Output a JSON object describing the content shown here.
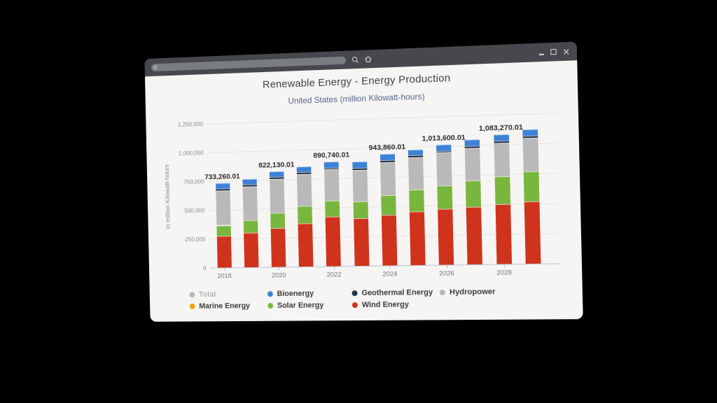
{
  "browser": {
    "address_bar": {
      "value": "",
      "placeholder": ""
    },
    "toolbar_icons": [
      "search-icon",
      "home-icon"
    ],
    "window_controls": [
      "minimize",
      "maximize",
      "close"
    ],
    "colors": {
      "chrome_bg": "#46484d",
      "pill_bg": "#797c80",
      "body_bg": "#f6f5f3"
    }
  },
  "chart": {
    "title": "Renewable Energy - Energy Production",
    "subtitle": "United States (million Kilowatt-hours)",
    "y_axis_title": "in million Kilowatt-hours"
  },
  "chart_data": {
    "type": "bar",
    "stacked": true,
    "title": "Renewable Energy - Energy Production",
    "subtitle": "United States (million Kilowatt-hours)",
    "ylabel": "in million Kilowatt-hours",
    "ylim": [
      0,
      1250000
    ],
    "grid": "horizontal",
    "legend_position": "bottom",
    "categories": [
      "2018",
      "2019",
      "2020",
      "2021",
      "2022",
      "2023",
      "2024",
      "2025",
      "2026",
      "2027",
      "2028",
      "2029"
    ],
    "series": [
      {
        "name": "Wind Energy",
        "color": "#d0331c",
        "values": [
          273000,
          300000,
          335000,
          370000,
          425000,
          405000,
          430000,
          450000,
          468000,
          485000,
          502000,
          520000
        ]
      },
      {
        "name": "Solar Energy",
        "color": "#79b63e",
        "values": [
          93000,
          105000,
          130000,
          145000,
          133000,
          140000,
          166000,
          185000,
          200000,
          215000,
          230000,
          245000
        ]
      },
      {
        "name": "Marine Energy",
        "color": "#f0a30a",
        "values": [
          0.01,
          0.01,
          0.01,
          0.01,
          0.01,
          0.01,
          0.01,
          0.01,
          0.01,
          0.01,
          0.01,
          0.01
        ]
      },
      {
        "name": "Hydropower",
        "color": "#b9b9b9",
        "values": [
          302260,
          293000,
          292130,
          275000,
          266740,
          273000,
          279860,
          274000,
          275600,
          277000,
          279270,
          282000
        ]
      },
      {
        "name": "Geothermal Energy",
        "color": "#1d3349",
        "values": [
          17000,
          17000,
          17000,
          17000,
          17000,
          17000,
          17000,
          17000,
          17000,
          17000,
          17000,
          17000
        ]
      },
      {
        "name": "Bioenergy",
        "color": "#3e82d8",
        "values": [
          48000,
          47000,
          48000,
          48000,
          49000,
          50000,
          51000,
          52000,
          53000,
          54000,
          55000,
          56000
        ]
      }
    ],
    "bar_labels": [
      "733,260.01",
      null,
      "822,130.01",
      null,
      "890,740.01",
      null,
      "943,860.01",
      null,
      "1,013,600.01",
      null,
      "1,083,270.01",
      null
    ],
    "x_tick_labels": [
      "2018",
      "2020",
      "2022",
      "2024",
      "2026",
      "2028"
    ],
    "yticks": [
      {
        "value": 0,
        "label": "0"
      },
      {
        "value": 250000,
        "label": "250,000"
      },
      {
        "value": 500000,
        "label": "500,000"
      },
      {
        "value": 750000,
        "label": "750,000"
      },
      {
        "value": 1000000,
        "label": "1,000,000"
      },
      {
        "value": 1250000,
        "label": "1,250,000"
      }
    ]
  },
  "legend": {
    "items": [
      {
        "label": "Total",
        "color": "#b6b6b6",
        "muted": true
      },
      {
        "label": "Marine Energy",
        "color": "#f0a30a",
        "muted": false
      },
      {
        "label": "Bioenergy",
        "color": "#3e82d8",
        "muted": false
      },
      {
        "label": "Solar Energy",
        "color": "#79b63e",
        "muted": false
      },
      {
        "label": "Geothermal Energy",
        "color": "#1d3349",
        "muted": false
      },
      {
        "label": "Wind Energy",
        "color": "#d0331c",
        "muted": false
      },
      {
        "label": "Hydropower",
        "color": "#b9b9b9",
        "muted": false
      }
    ]
  }
}
